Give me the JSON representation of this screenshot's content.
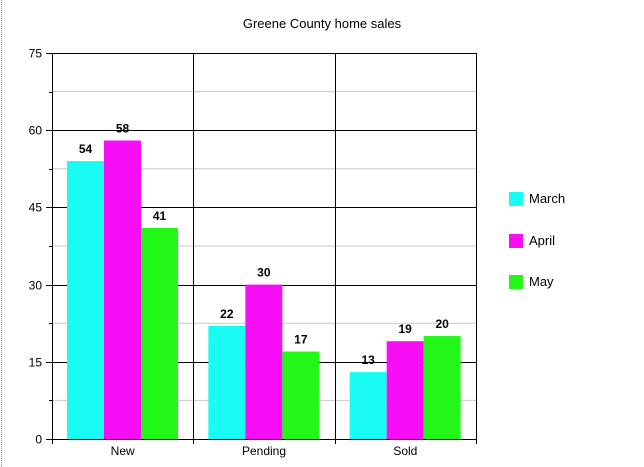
{
  "chart_data": {
    "type": "bar",
    "title": "Greene County home sales",
    "categories": [
      "New",
      "Pending",
      "Sold"
    ],
    "series": [
      {
        "name": "March",
        "values": [
          54,
          22,
          13
        ],
        "color": "#19fcf4"
      },
      {
        "name": "April",
        "values": [
          58,
          30,
          19
        ],
        "color": "#f80ef5"
      },
      {
        "name": "May",
        "values": [
          41,
          17,
          20
        ],
        "color": "#22f718"
      }
    ],
    "ylim": [
      0,
      75
    ],
    "yticks": [
      "0",
      "15",
      "30",
      "45",
      "60",
      "75"
    ],
    "grid": true,
    "legend": "right",
    "colors": {
      "gridline": "#000000",
      "minor_gridline": "#c8c8c8",
      "axis": "#000000"
    }
  }
}
